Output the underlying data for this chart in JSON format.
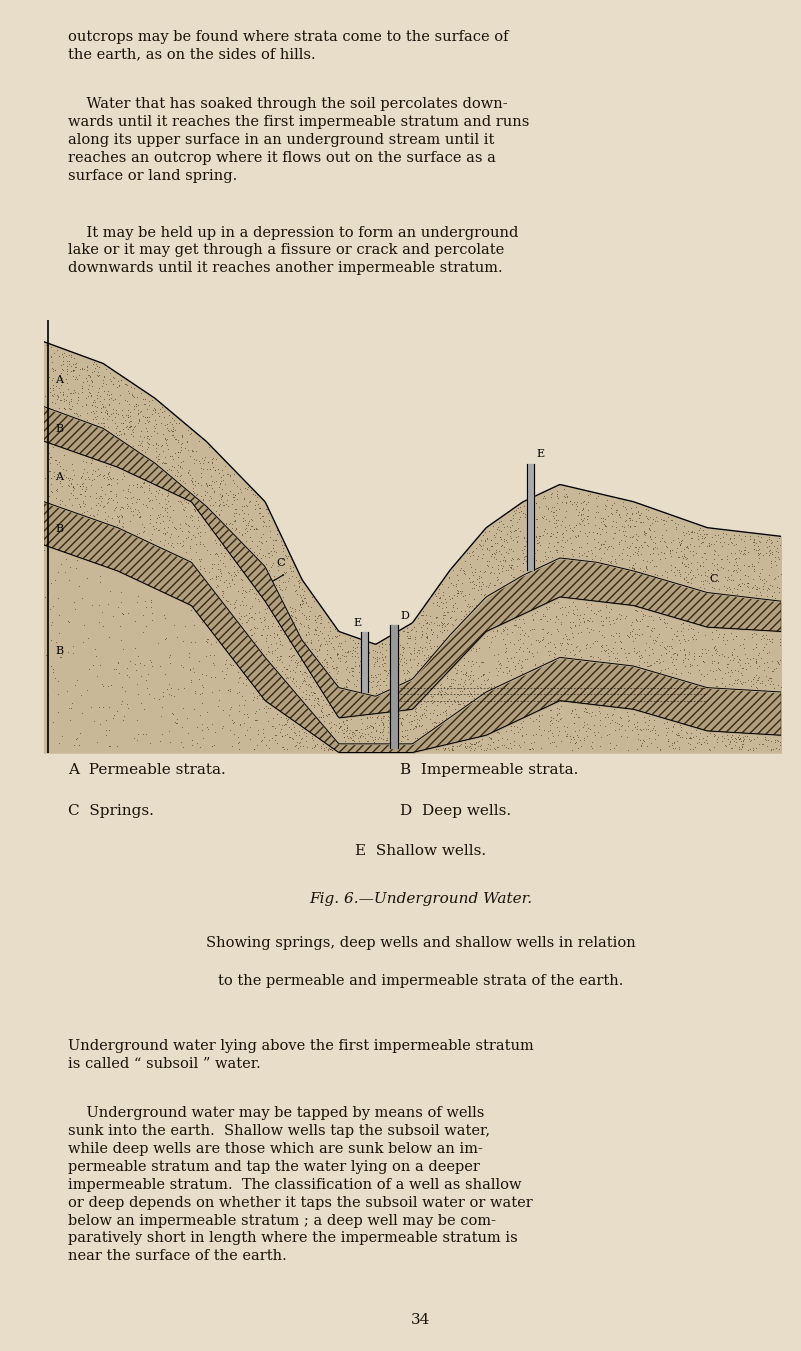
{
  "bg_color": "#e8ddc8",
  "text_color": "#1a1208",
  "page_width": 8.01,
  "page_height": 13.51,
  "top_para1": "outcrops may be found where strata come to the surface of\nthe earth, as on the sides of hills.",
  "top_para2": "    Water that has soaked through the soil percolates down-\nwards until it reaches the first impermeable stratum and runs\nalong its upper surface in an underground stream until it\nreaches an outcrop where it flows out on the surface as a\nsurface or land spring.",
  "top_para3": "    It may be held up in a depression to form an underground\nlake or it may get through a fissure or crack and percolate\ndownwards until it reaches another impermeable stratum.",
  "legend_left": [
    "A  Permeable strata.",
    "C  Springs."
  ],
  "legend_right": [
    "B  Impermeable strata.",
    "D  Deep wells."
  ],
  "legend_center": "E  Shallow wells.",
  "fig_title": "Fig. 6.—Underground Water.",
  "fig_sub1": "Showing springs, deep wells and shallow wells in relation",
  "fig_sub2": "to the permeable and impermeable strata of the earth.",
  "bottom_para1": "Underground water lying above the first impermeable stratum\nis called “ subsoil ” water.",
  "bottom_para2": "    Underground water may be tapped by means of wells\nsunk into the earth.  Shallow wells tap the subsoil water,\nwhile deep wells are those which are sunk below an im-\npermeable stratum and tap the water lying on a deeper\nimpermeable stratum.  The classification of a well as shallow\nor deep depends on whether it taps the subsoil water or water\nbelow an impermeable stratum ; a deep well may be com-\nparatively short in length where the impermeable stratum is\nnear the surface of the earth.",
  "page_number": "34",
  "font_size_body": 10.5,
  "font_size_legend": 11,
  "font_size_title": 11
}
